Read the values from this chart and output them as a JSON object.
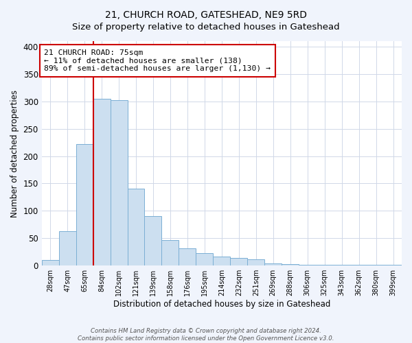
{
  "title": "21, CHURCH ROAD, GATESHEAD, NE9 5RD",
  "subtitle": "Size of property relative to detached houses in Gateshead",
  "xlabel": "Distribution of detached houses by size in Gateshead",
  "ylabel": "Number of detached properties",
  "bar_labels": [
    "28sqm",
    "47sqm",
    "65sqm",
    "84sqm",
    "102sqm",
    "121sqm",
    "139sqm",
    "158sqm",
    "176sqm",
    "195sqm",
    "214sqm",
    "232sqm",
    "251sqm",
    "269sqm",
    "288sqm",
    "306sqm",
    "325sqm",
    "343sqm",
    "362sqm",
    "380sqm",
    "399sqm"
  ],
  "bar_values": [
    10,
    63,
    222,
    305,
    302,
    140,
    90,
    46,
    31,
    23,
    16,
    14,
    12,
    4,
    3,
    2,
    1,
    1,
    1,
    1,
    1
  ],
  "bar_color": "#ccdff0",
  "bar_edge_color": "#7bafd4",
  "vline_color": "#cc0000",
  "annotation_title": "21 CHURCH ROAD: 75sqm",
  "annotation_line1": "← 11% of detached houses are smaller (138)",
  "annotation_line2": "89% of semi-detached houses are larger (1,130) →",
  "annotation_box_color": "#ffffff",
  "annotation_box_edge": "#cc0000",
  "ylim": [
    0,
    410
  ],
  "footer1": "Contains HM Land Registry data © Crown copyright and database right 2024.",
  "footer2": "Contains public sector information licensed under the Open Government Licence v3.0.",
  "background_color": "#f0f4fc",
  "plot_background": "#ffffff",
  "yticks": [
    0,
    50,
    100,
    150,
    200,
    250,
    300,
    350,
    400
  ],
  "grid_color": "#d0d8e8",
  "title_fontsize": 10,
  "subtitle_fontsize": 9.5,
  "vline_x_bar_index": 3
}
